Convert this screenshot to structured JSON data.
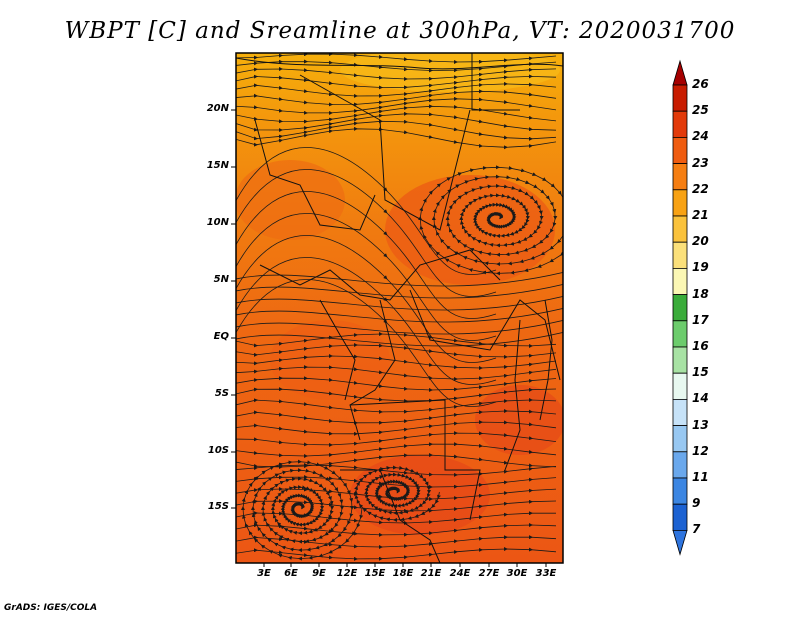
{
  "title": "WBPT [C] and Sreamline at 300hPa, VT: 2020031700",
  "credit": "GrADS: IGES/COLA",
  "map": {
    "field": "Wet-bulb potential temperature (WBPT)",
    "units": "C",
    "level": "300hPa",
    "latitude_labels": [
      "20N",
      "15N",
      "10N",
      "5N",
      "EQ",
      "5S",
      "10S",
      "15S"
    ],
    "longitude_labels": [
      "3E",
      "6E",
      "9E",
      "12E",
      "15E",
      "18E",
      "21E",
      "24E",
      "27E",
      "30E",
      "33E"
    ],
    "colors": {
      "band_north": "#f4a00a",
      "band_mid": "#f0780f",
      "band_south": "#ee5b12",
      "warm_patch": "#e6451a",
      "streamline": "#1a1a1a"
    }
  },
  "colorbar": {
    "labels": [
      "26",
      "25",
      "24",
      "23",
      "22",
      "21",
      "20",
      "19",
      "18",
      "17",
      "16",
      "15",
      "14",
      "13",
      "12",
      "11",
      "9",
      "7"
    ],
    "colors": [
      "#a50000",
      "#c81c00",
      "#e23a0a",
      "#ef5c10",
      "#f57e12",
      "#f8a214",
      "#fac23c",
      "#fbe07a",
      "#fbf7b4",
      "#3aac3a",
      "#6ccc6c",
      "#a8e2a4",
      "#e8f8f0",
      "#c6e2f8",
      "#98c8f2",
      "#6aa8ec",
      "#3c86e2",
      "#1c62d2",
      "#2e74de"
    ]
  }
}
